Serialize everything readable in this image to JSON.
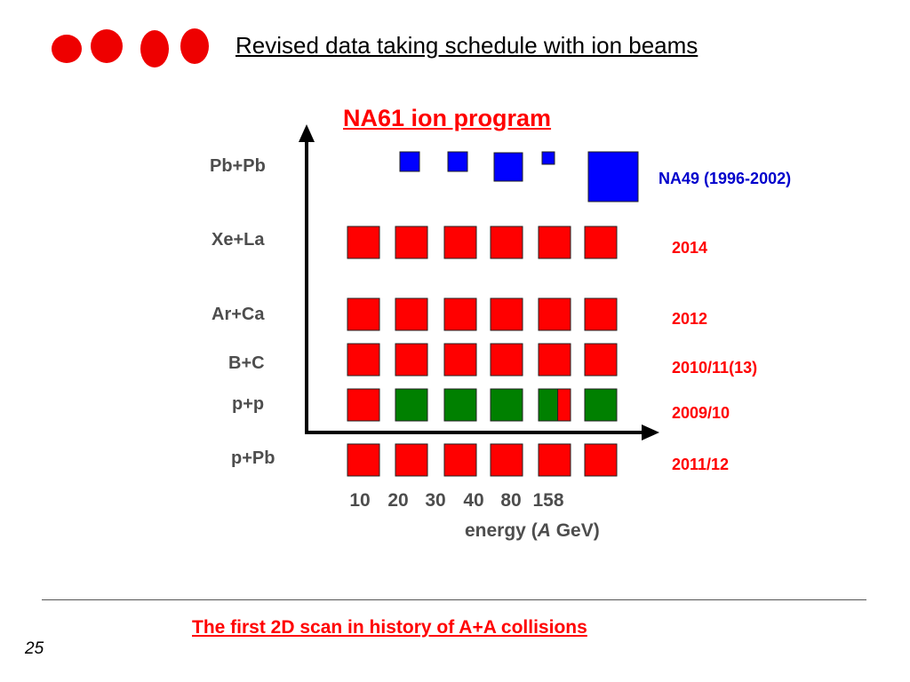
{
  "header": {
    "title": "Revised data taking schedule with ion beams",
    "logo_colors": [
      "#ee0000"
    ]
  },
  "chart_data": {
    "type": "other",
    "title": "NA61 ion program",
    "xlabel": "energy (A GeV)",
    "xlabel_prefix": "energy (",
    "xlabel_var": "A",
    "xlabel_suffix": " GeV)",
    "energies": [
      "10",
      "20",
      "30",
      "40",
      "80",
      "158"
    ],
    "rows": [
      {
        "system": "Pb+Pb",
        "year": "NA49 (1996-2002)",
        "experiment": "NA49",
        "color": "#0000ff",
        "points": [
          {
            "energy": "20",
            "size": "small"
          },
          {
            "energy": "30",
            "size": "small"
          },
          {
            "energy": "40",
            "size": "medium"
          },
          {
            "energy": "80",
            "size": "tiny"
          },
          {
            "energy": "158",
            "size": "large"
          }
        ]
      },
      {
        "system": "Xe+La",
        "year": "2014",
        "experiment": "NA61",
        "color": "#ff0000",
        "points": [
          "10",
          "20",
          "30",
          "40",
          "80",
          "158"
        ]
      },
      {
        "system": "Ar+Ca",
        "year": "2012",
        "experiment": "NA61",
        "color": "#ff0000",
        "points": [
          "10",
          "20",
          "30",
          "40",
          "80",
          "158"
        ]
      },
      {
        "system": "B+C",
        "year": "2010/11(13)",
        "experiment": "NA61",
        "color": "#ff0000",
        "points": [
          "10",
          "20",
          "30",
          "40",
          "80",
          "158"
        ]
      },
      {
        "system": "p+p",
        "year": "2009/10",
        "experiment": "NA61",
        "color": "#008000",
        "points": [
          {
            "energy": "10",
            "status": "red"
          },
          {
            "energy": "20",
            "status": "green"
          },
          {
            "energy": "30",
            "status": "green"
          },
          {
            "energy": "40",
            "status": "green"
          },
          {
            "energy": "80",
            "status": "green+red"
          },
          {
            "energy": "158",
            "status": "green"
          }
        ]
      },
      {
        "system": "p+Pb",
        "year": "2011/12",
        "experiment": "NA61",
        "color": "#ff0000",
        "points": [
          "10",
          "20",
          "30",
          "40",
          "80",
          "158"
        ]
      }
    ],
    "colors": {
      "na61": "#ff0000",
      "na49": "#0000ff",
      "pp_done": "#008000"
    }
  },
  "footer": {
    "caption": "The first 2D scan in history of A+A collisions",
    "page_number": "25"
  }
}
